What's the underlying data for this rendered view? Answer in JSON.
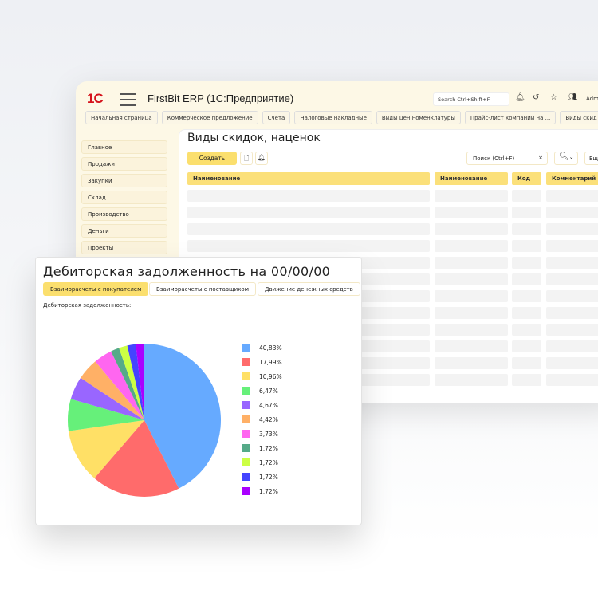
{
  "app": {
    "logo": "1С",
    "title": "FirstBit ERP (1С:Предприятие)",
    "search_placeholder": "Search Ctrl+Shift+F",
    "user": "Admi",
    "icons": [
      "bell-icon",
      "history-icon",
      "star-icon",
      "users-icon"
    ]
  },
  "tabs": [
    "Начальная страница",
    "Коммерческое предложение",
    "Счета",
    "Налоговые накладные",
    "Виды цен номенклатуры",
    "Прайс-лист компании на ...",
    "Виды скид"
  ],
  "sidebar": [
    "Главное",
    "Продажи",
    "Закупки",
    "Склад",
    "Производство",
    "Деньги",
    "Проекты"
  ],
  "list": {
    "title": "Виды скидок, наценок",
    "create": "Создать",
    "search": "Поиск (Ctrl+F)",
    "clear": "×",
    "more": "Ещ",
    "columns": [
      "Наименование",
      "Наименование",
      "Код",
      "Комментарий"
    ]
  },
  "report": {
    "title": "Дебиторская задолженность на 00/00/00",
    "buttons": [
      "Взаиморасчеты с покупателем",
      "Взаиморасчеты с поставщиком",
      "Движение денежных средств"
    ],
    "active_button": 0,
    "label": "Дебиторская задолженность:"
  },
  "chart_data": {
    "type": "pie",
    "labels": [
      "40,83%",
      "17,99%",
      "10,96%",
      "6,47%",
      "4,67%",
      "4,42%",
      "3,73%",
      "1,72%",
      "1,72%",
      "1,72%",
      "1,72%"
    ],
    "values": [
      40.83,
      17.99,
      10.96,
      6.47,
      4.67,
      4.42,
      3.73,
      1.72,
      1.72,
      1.72,
      1.72
    ],
    "colors": [
      "#66aaff",
      "#ff6b6b",
      "#ffe066",
      "#66f07a",
      "#9966ff",
      "#ffb066",
      "#ff66f0",
      "#55aa88",
      "#ccff44",
      "#4444ff",
      "#aa00ff"
    ],
    "legend": "right"
  }
}
